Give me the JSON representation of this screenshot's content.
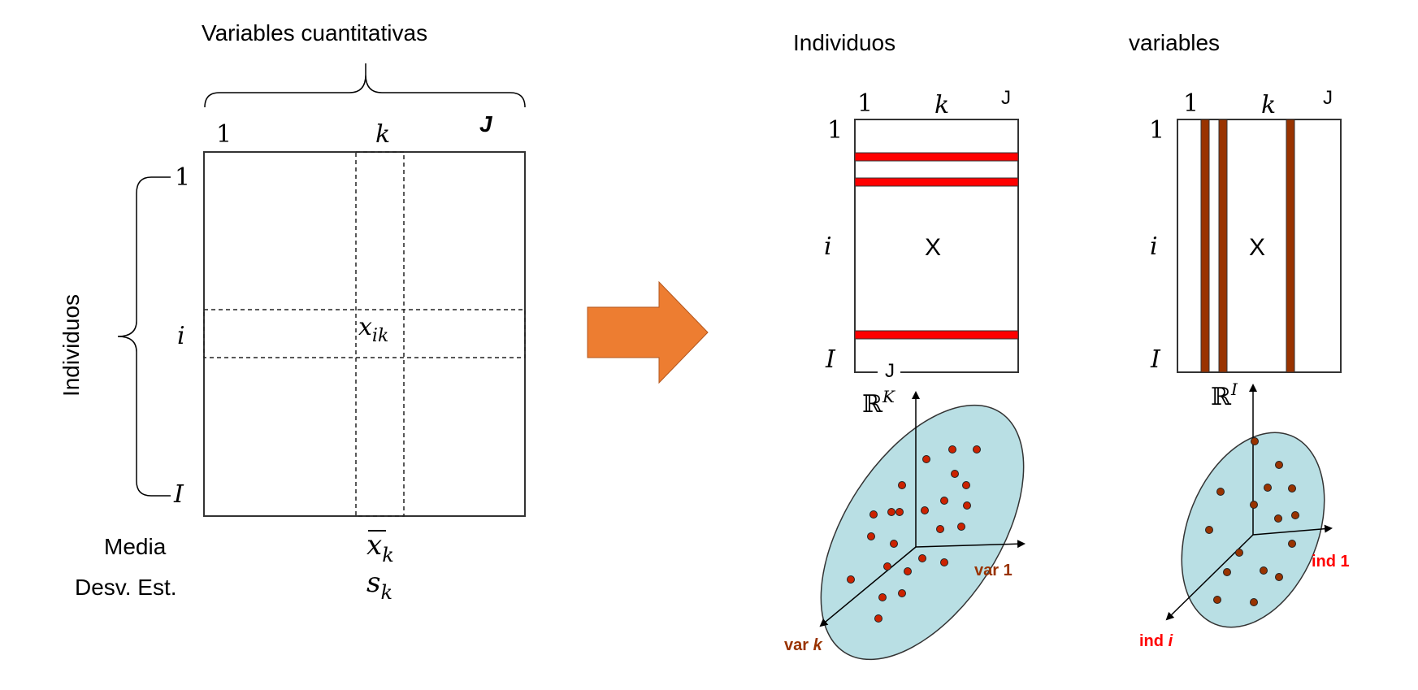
{
  "left": {
    "top_title": "Variables cuantitativas",
    "side_title": "Individuos",
    "col_labels": {
      "first": "1",
      "middle": "k",
      "last": "J"
    },
    "row_labels": {
      "first": "1",
      "middle": "i",
      "last": "I"
    },
    "cell_label": "x",
    "cell_sub": "ik",
    "mean_label": "Media",
    "sd_label": "Desv. Est.",
    "mean_symbol": "x",
    "mean_sub": "k",
    "sd_symbol": "s",
    "sd_sub": "k"
  },
  "arrow_color": "#ED7D31",
  "ind_panel": {
    "title": "Individuos",
    "col_labels": {
      "first": "1",
      "middle": "k",
      "last": "J"
    },
    "row_labels": {
      "first": "1",
      "middle": "i",
      "last": "I"
    },
    "bottom_label": "J",
    "matrix_label": "X",
    "stripe_color": "#FF0000",
    "space_label": "ℝ",
    "space_sup": "K",
    "axis_x_label": "var 1",
    "axis_z_label": "var",
    "axis_z_sub": "k",
    "axis_label_color": "#993300",
    "ellipse_color": "#B9DFE4",
    "dot_color": "#CC2200"
  },
  "var_panel": {
    "title": "variables",
    "col_labels": {
      "first": "1",
      "middle": "k",
      "last": "J"
    },
    "row_labels": {
      "first": "1",
      "middle": "i",
      "last": "I"
    },
    "matrix_label": "X",
    "stripe_color": "#993300",
    "space_label": "ℝ",
    "space_sup": "I",
    "axis_x_label": "ind 1",
    "axis_z_label": "ind",
    "axis_z_sub": "i",
    "axis_label_color": "#FF0000",
    "ellipse_color": "#B9DFE4",
    "dot_color": "#993300"
  }
}
